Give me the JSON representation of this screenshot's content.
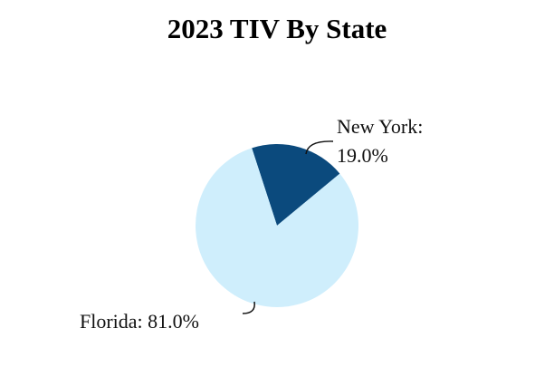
{
  "chart_data": {
    "type": "pie",
    "title": "2023 TIV By State",
    "values": [
      19.0,
      81.0
    ],
    "value_labels": [
      "New York: 19.0%",
      "Florida: 81.0%"
    ],
    "colors": [
      "#0b4a7d",
      "#cfeefc"
    ]
  }
}
